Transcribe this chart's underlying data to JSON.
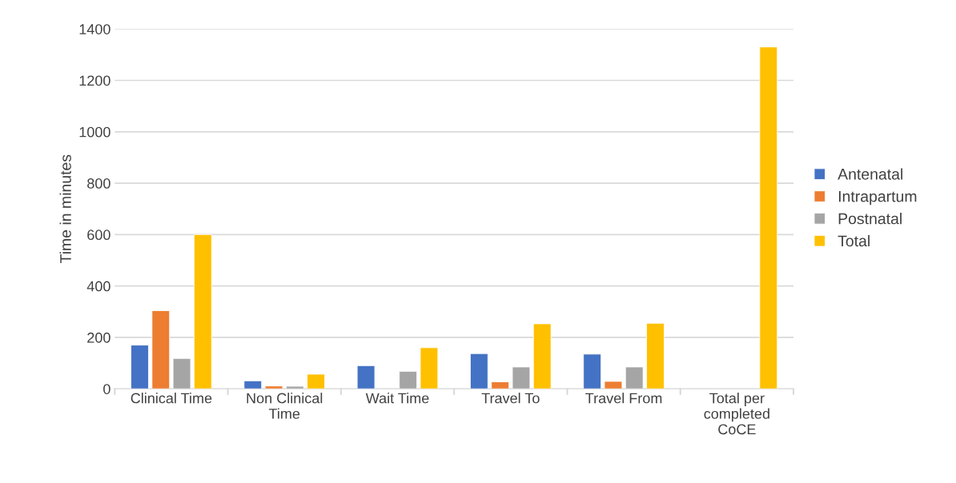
{
  "chart_data": {
    "type": "bar",
    "ylabel": "Time in minutes",
    "categories": [
      "Clinical Time",
      "Non Clinical Time",
      "Wait Time",
      "Travel To",
      "Travel From",
      "Total per completed CoCE"
    ],
    "series": [
      {
        "name": "Antenatal",
        "color": "#4472c4",
        "values": [
          170,
          31,
          90,
          137,
          135,
          null
        ]
      },
      {
        "name": "Intrapartum",
        "color": "#ed7d31",
        "values": [
          304,
          11,
          null,
          27,
          29,
          null
        ]
      },
      {
        "name": "Postnatal",
        "color": "#a5a5a5",
        "values": [
          118,
          10,
          68,
          85,
          85,
          null
        ]
      },
      {
        "name": "Total",
        "color": "#ffc000",
        "values": [
          600,
          57,
          160,
          253,
          255,
          1330
        ]
      }
    ],
    "ylim": [
      0,
      1400
    ],
    "yticks": [
      0,
      200,
      400,
      600,
      800,
      1000,
      1200,
      1400
    ],
    "grid": "y",
    "legend": "right"
  }
}
